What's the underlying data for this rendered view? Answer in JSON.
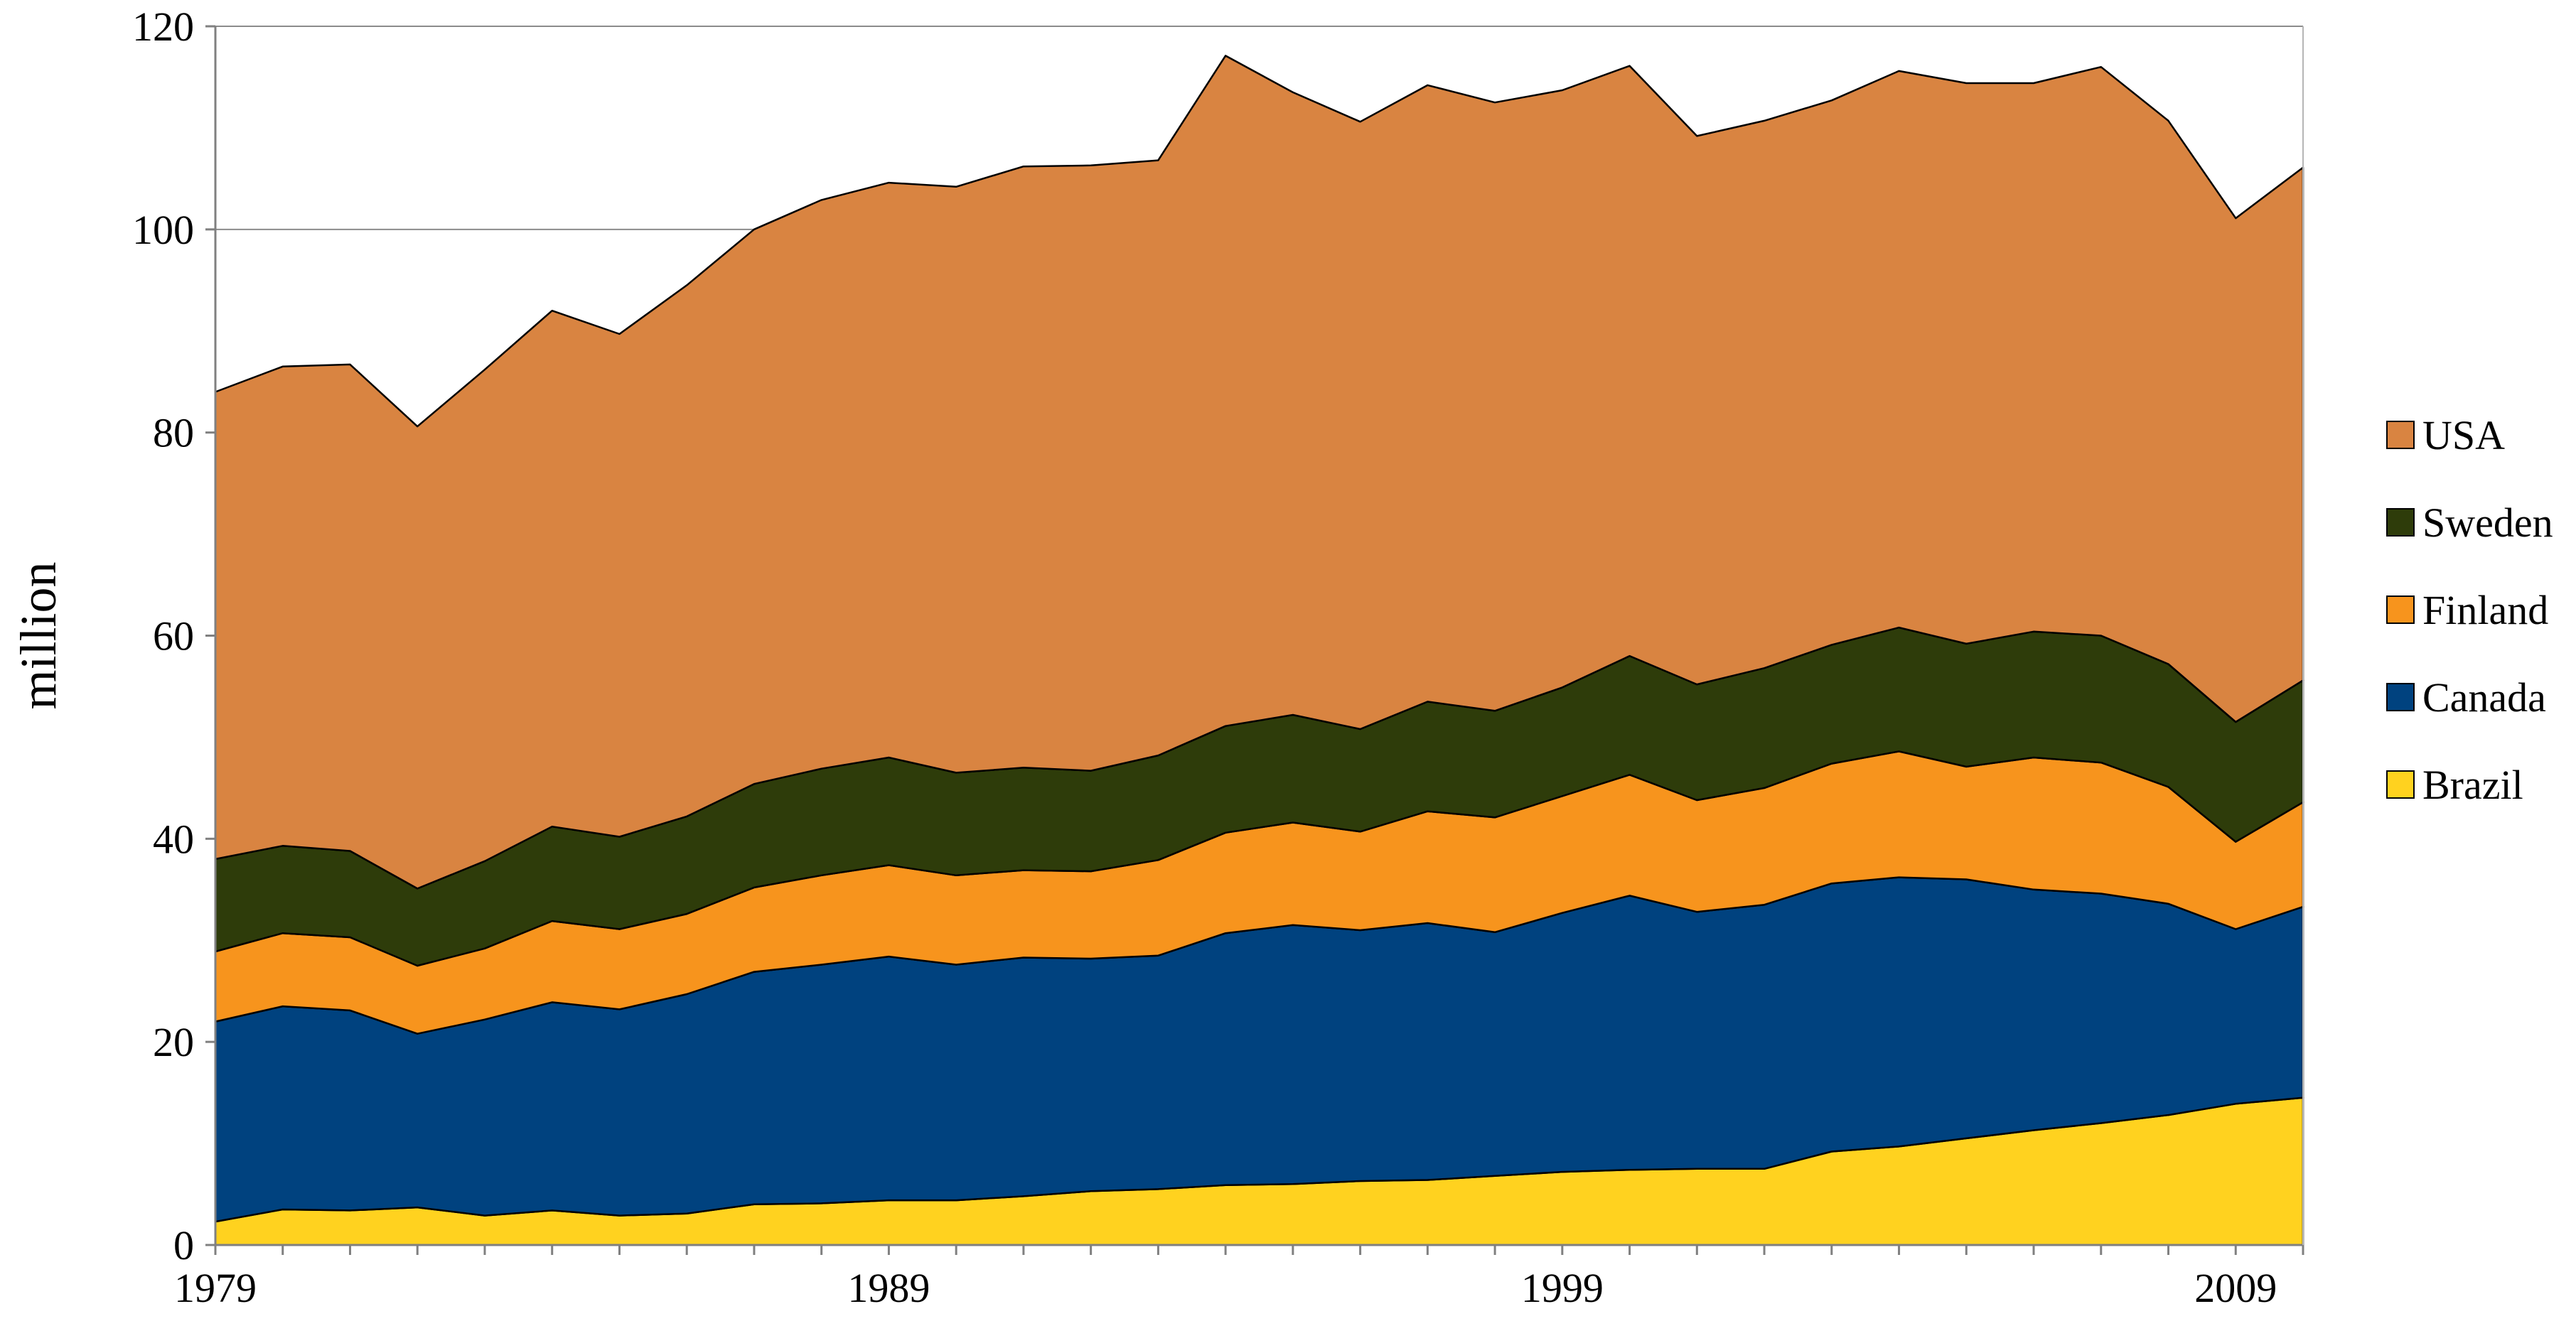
{
  "chart_data": {
    "type": "area",
    "stacked": true,
    "title": "",
    "xlabel": "",
    "ylabel": "million",
    "ylim": [
      0,
      120
    ],
    "xlim": [
      1979,
      2010
    ],
    "yticks": [
      "0",
      "20",
      "40",
      "60",
      "80",
      "100",
      "120"
    ],
    "xticks": [
      "1979",
      "1989",
      "1999",
      "2009"
    ],
    "grid": "horizontal",
    "legend_position": "right",
    "x": [
      1979,
      1980,
      1981,
      1982,
      1983,
      1984,
      1985,
      1986,
      1987,
      1988,
      1989,
      1990,
      1991,
      1992,
      1993,
      1994,
      1995,
      1996,
      1997,
      1998,
      1999,
      2000,
      2001,
      2002,
      2003,
      2004,
      2005,
      2006,
      2007,
      2008,
      2009,
      2010
    ],
    "series": [
      {
        "name": "Brazil",
        "color": "#FFD21F",
        "values": [
          2.3,
          3.5,
          3.4,
          3.7,
          2.9,
          3.4,
          2.9,
          3.1,
          4.0,
          4.1,
          4.4,
          4.4,
          4.8,
          5.3,
          5.5,
          5.9,
          6.0,
          6.3,
          6.4,
          6.8,
          7.2,
          7.4,
          7.5,
          7.5,
          9.2,
          9.7,
          10.5,
          11.3,
          12.0,
          12.8,
          13.9,
          14.5
        ]
      },
      {
        "name": "Canada",
        "color": "#00427F",
        "values": [
          19.7,
          20.0,
          19.7,
          17.1,
          19.3,
          20.5,
          20.3,
          21.6,
          22.9,
          23.5,
          24.0,
          23.2,
          23.5,
          22.9,
          23.0,
          24.8,
          25.5,
          24.7,
          25.3,
          24.0,
          25.5,
          27.0,
          25.3,
          26.0,
          26.4,
          26.5,
          25.5,
          23.7,
          22.6,
          20.8,
          17.2,
          18.8
        ]
      },
      {
        "name": "Finland",
        "color": "#F7941D",
        "values": [
          6.9,
          7.2,
          7.2,
          6.7,
          7.0,
          8.0,
          7.9,
          7.9,
          8.3,
          8.8,
          9.0,
          8.8,
          8.6,
          8.6,
          9.4,
          9.9,
          10.1,
          9.7,
          11.0,
          11.3,
          11.5,
          11.9,
          11.0,
          11.5,
          11.8,
          12.4,
          11.1,
          13.0,
          12.9,
          11.5,
          8.6,
          10.3
        ]
      },
      {
        "name": "Sweden",
        "color": "#2E3C0A",
        "values": [
          9.1,
          8.6,
          8.5,
          7.6,
          8.6,
          9.3,
          9.1,
          9.6,
          10.2,
          10.5,
          10.6,
          10.1,
          10.1,
          9.9,
          10.3,
          10.5,
          10.6,
          10.1,
          10.8,
          10.5,
          10.7,
          11.7,
          11.4,
          11.8,
          11.7,
          12.2,
          12.1,
          12.4,
          12.5,
          12.1,
          11.8,
          12.0
        ]
      },
      {
        "name": "USA",
        "color": "#D98441",
        "values": [
          46.0,
          47.2,
          47.9,
          45.5,
          48.4,
          50.8,
          49.5,
          52.3,
          54.6,
          56.0,
          56.6,
          57.7,
          59.2,
          59.6,
          58.6,
          66.0,
          61.3,
          59.8,
          60.7,
          59.9,
          58.8,
          58.1,
          54.0,
          53.9,
          53.6,
          54.8,
          55.2,
          54.0,
          56.0,
          53.5,
          49.6,
          50.5
        ]
      }
    ]
  }
}
